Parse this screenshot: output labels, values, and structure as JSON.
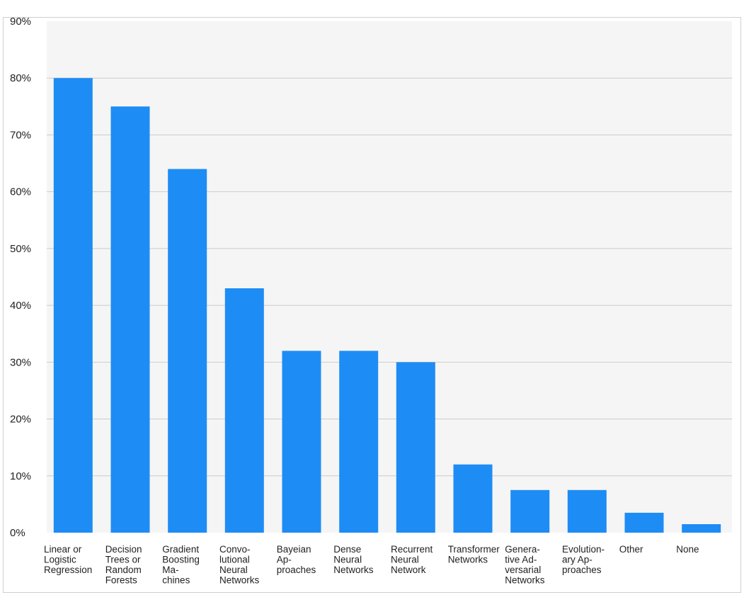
{
  "chart_data": {
    "type": "bar",
    "title": "",
    "xlabel": "",
    "ylabel": "",
    "ylim": [
      0,
      90
    ],
    "y_ticks": [
      "0%",
      "10%",
      "20%",
      "30%",
      "40%",
      "50%",
      "60%",
      "70%",
      "80%",
      "90%"
    ],
    "y_tick_values": [
      0,
      10,
      20,
      30,
      40,
      50,
      60,
      70,
      80,
      90
    ],
    "grid": true,
    "categories": [
      [
        "Linear or",
        "Logistic",
        "Regression"
      ],
      [
        "Decision",
        "Trees or",
        "Random",
        "Forests"
      ],
      [
        "Gradient",
        "Boosting",
        "Ma-",
        "chines"
      ],
      [
        "Convo-",
        "lutional",
        "Neural",
        "Networks"
      ],
      [
        "Bayeian",
        "Ap-",
        "proaches"
      ],
      [
        "Dense",
        "Neural",
        "Networks"
      ],
      [
        "Recurrent",
        "Neural",
        "Network"
      ],
      [
        "Transformer",
        "Networks"
      ],
      [
        "Genera-",
        "tive Ad-",
        "versarial",
        "Networks"
      ],
      [
        "Evolution-",
        "ary Ap-",
        "proaches"
      ],
      [
        "Other"
      ],
      [
        "None"
      ]
    ],
    "values": [
      80,
      75,
      64,
      43,
      32,
      32,
      30,
      12,
      7.5,
      7.5,
      3.5,
      1.5
    ],
    "bar_color": "#1e8cf5",
    "plot_background": "#f5f5f5",
    "grid_color": "#cccccc"
  }
}
